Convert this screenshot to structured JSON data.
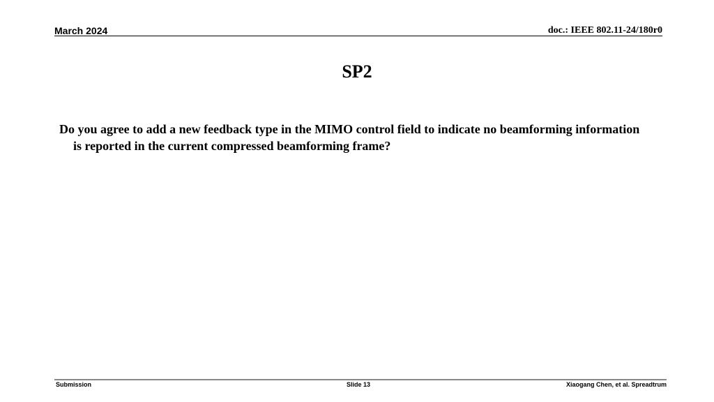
{
  "header": {
    "date": "March 2024",
    "doc": "doc.: IEEE 802.11-24/180r0"
  },
  "slide": {
    "title": "SP2",
    "body": "Do you agree to add a new feedback type in the MIMO control field to indicate no beamforming information is reported in the current compressed beamforming frame?"
  },
  "footer": {
    "left": "Submission",
    "center": "Slide 13",
    "right": "Xiaogang Chen, et al. Spreadtrum"
  }
}
